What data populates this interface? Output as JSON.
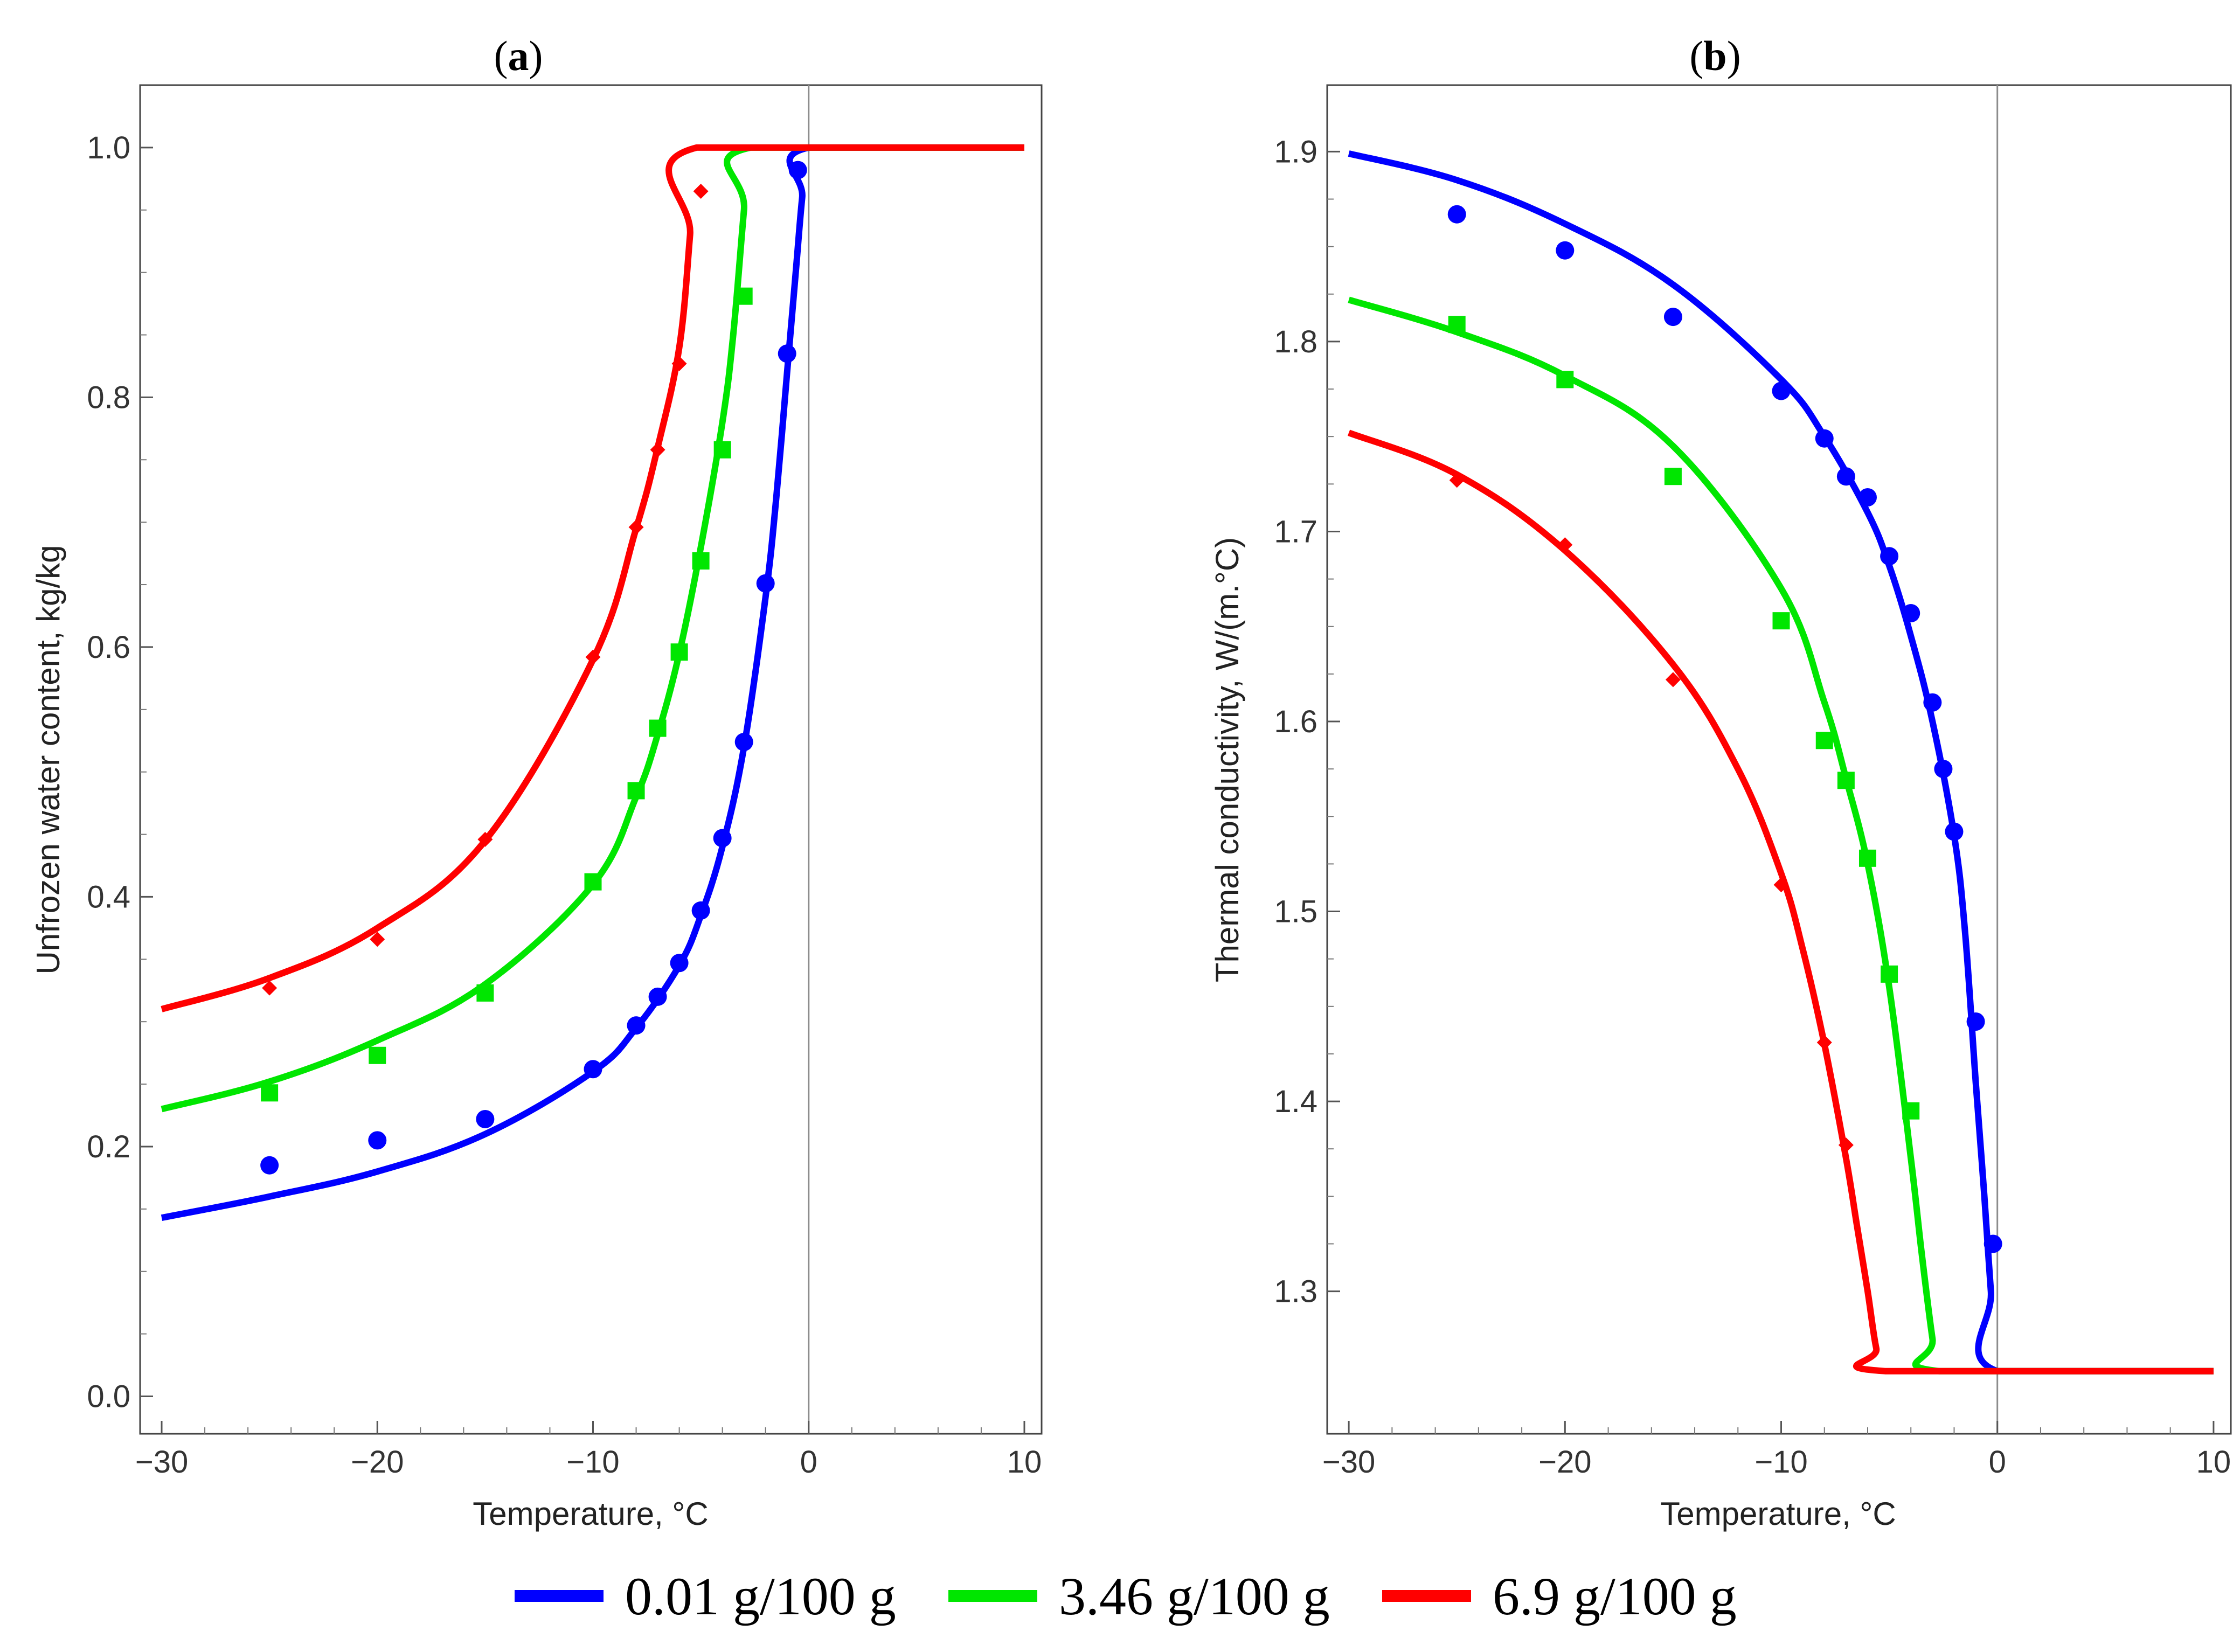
{
  "chart_data": [
    {
      "type": "line",
      "panel": "a",
      "title_open": "(",
      "title_letter": "a",
      "title_close": ")",
      "xlabel": "Temperature, °C",
      "ylabel": "Unfrozen water content, kg/kg",
      "xlim": [
        -31,
        10.8
      ],
      "ylim": [
        -0.03,
        1.05
      ],
      "x_ticks": [
        -30,
        -20,
        -10,
        0,
        10
      ],
      "x_tick_labels": [
        "−30",
        "−20",
        "−10",
        "0",
        "10"
      ],
      "y_ticks": [
        0.0,
        0.2,
        0.4,
        0.6,
        0.8,
        1.0
      ],
      "y_tick_labels": [
        "0.0",
        "0.2",
        "0.4",
        "0.6",
        "0.8",
        "1.0"
      ],
      "series": [
        {
          "name": "0.01 g/100 g",
          "color": "#0000ff",
          "marker": "circle",
          "line_x": [
            -30,
            -25,
            -20,
            -15,
            -10,
            -8,
            -6,
            -5,
            -4,
            -3,
            -2,
            -1.5,
            -1,
            -0.6,
            -0.3,
            0,
            10
          ],
          "line_y": [
            0.143,
            0.16,
            0.18,
            0.21,
            0.26,
            0.295,
            0.345,
            0.385,
            0.44,
            0.52,
            0.64,
            0.72,
            0.82,
            0.9,
            0.96,
            1.0,
            1.0
          ],
          "points_x": [
            -25,
            -20,
            -15,
            -10,
            -8,
            -7,
            -6,
            -5,
            -4,
            -3,
            -2,
            -1,
            -0.5
          ],
          "points_y": [
            0.185,
            0.205,
            0.222,
            0.262,
            0.297,
            0.32,
            0.347,
            0.389,
            0.447,
            0.524,
            0.651,
            0.835,
            0.982
          ]
        },
        {
          "name": "3.46 g/100 g",
          "color": "#00e600",
          "marker": "square",
          "line_x": [
            -30,
            -25,
            -20,
            -15,
            -10,
            -8,
            -7,
            -6,
            -5,
            -4,
            -3.5,
            -3,
            -2.7,
            10
          ],
          "line_y": [
            0.23,
            0.252,
            0.285,
            0.33,
            0.41,
            0.48,
            0.53,
            0.595,
            0.68,
            0.78,
            0.85,
            0.95,
            1.0,
            1.0
          ],
          "points_x": [
            -25,
            -20,
            -15,
            -10,
            -8,
            -7,
            -6,
            -5,
            -4,
            -3
          ],
          "points_y": [
            0.243,
            0.273,
            0.323,
            0.412,
            0.485,
            0.535,
            0.596,
            0.669,
            0.758,
            0.881
          ]
        },
        {
          "name": "6.9 g/100 g",
          "color": "#ff0000",
          "marker": "diamond",
          "line_x": [
            -30,
            -25,
            -20,
            -15,
            -10,
            -8,
            -7,
            -6,
            -5.5,
            -5.2,
            10
          ],
          "line_y": [
            0.31,
            0.335,
            0.375,
            0.445,
            0.59,
            0.695,
            0.76,
            0.84,
            0.93,
            1.0,
            1.0
          ],
          "points_x": [
            -25,
            -20,
            -15,
            -10,
            -8,
            -7,
            -6,
            -5
          ],
          "points_y": [
            0.327,
            0.366,
            0.446,
            0.592,
            0.696,
            0.758,
            0.827,
            0.965
          ]
        }
      ]
    },
    {
      "type": "line",
      "panel": "b",
      "title_open": "(",
      "title_letter": "b",
      "title_close": ")",
      "xlabel": "Temperature, °C",
      "ylabel": "Thermal conductivity, W/(m.°C)",
      "xlim": [
        -31,
        10.8
      ],
      "ylim": [
        1.225,
        1.935
      ],
      "x_ticks": [
        -30,
        -20,
        -10,
        0,
        10
      ],
      "x_tick_labels": [
        "−30",
        "−20",
        "−10",
        "0",
        "10"
      ],
      "y_ticks": [
        1.3,
        1.4,
        1.5,
        1.6,
        1.7,
        1.8,
        1.9
      ],
      "y_tick_labels": [
        "1.3",
        "1.4",
        "1.5",
        "1.6",
        "1.7",
        "1.8",
        "1.9"
      ],
      "series": [
        {
          "name": "0.01 g/100 g",
          "color": "#0000ff",
          "marker": "circle",
          "line_x": [
            -30,
            -25,
            -20,
            -15,
            -10,
            -8,
            -6,
            -5,
            -4,
            -3,
            -2,
            -1.5,
            -1,
            -0.6,
            -0.3,
            0,
            10
          ],
          "line_y": [
            1.899,
            1.885,
            1.862,
            1.83,
            1.78,
            1.75,
            1.71,
            1.682,
            1.645,
            1.6,
            1.54,
            1.49,
            1.41,
            1.35,
            1.3,
            1.258,
            1.258
          ],
          "points_x": [
            -25,
            -20,
            -15,
            -10,
            -8,
            -7,
            -6,
            -5,
            -4,
            -3,
            -2.5,
            -2,
            -1,
            -0.2
          ],
          "points_y": [
            1.867,
            1.848,
            1.813,
            1.774,
            1.749,
            1.729,
            1.718,
            1.687,
            1.657,
            1.61,
            1.575,
            1.542,
            1.442,
            1.325
          ]
        },
        {
          "name": "3.46 g/100 g",
          "color": "#00e600",
          "marker": "square",
          "line_x": [
            -30,
            -25,
            -20,
            -15,
            -10,
            -8,
            -7,
            -6,
            -5,
            -4,
            -3.5,
            -3,
            -2.7,
            10
          ],
          "line_y": [
            1.822,
            1.805,
            1.782,
            1.745,
            1.67,
            1.61,
            1.57,
            1.525,
            1.46,
            1.37,
            1.32,
            1.275,
            1.258,
            1.258
          ],
          "points_x": [
            -25,
            -20,
            -15,
            -10,
            -8,
            -7,
            -6,
            -5,
            -4
          ],
          "points_y": [
            1.809,
            1.78,
            1.729,
            1.653,
            1.59,
            1.569,
            1.528,
            1.467,
            1.395
          ]
        },
        {
          "name": "6.9 g/100 g",
          "color": "#ff0000",
          "marker": "diamond",
          "line_x": [
            -30,
            -25,
            -20,
            -15,
            -12,
            -10,
            -9,
            -8,
            -7,
            -6.5,
            -6,
            -5.6,
            -5.2,
            10
          ],
          "line_y": [
            1.752,
            1.73,
            1.69,
            1.63,
            1.575,
            1.52,
            1.48,
            1.43,
            1.37,
            1.335,
            1.3,
            1.27,
            1.258,
            1.258
          ],
          "points_x": [
            -25,
            -20,
            -15,
            -10,
            -8,
            -7
          ],
          "points_y": [
            1.727,
            1.693,
            1.622,
            1.514,
            1.431,
            1.377
          ]
        }
      ]
    }
  ],
  "legend": {
    "items": [
      {
        "label": "0.01 g/100 g",
        "color": "#0000ff"
      },
      {
        "label": "3.46 g/100 g",
        "color": "#00e600"
      },
      {
        "label": "6.9 g/100 g",
        "color": "#ff0000"
      }
    ]
  }
}
